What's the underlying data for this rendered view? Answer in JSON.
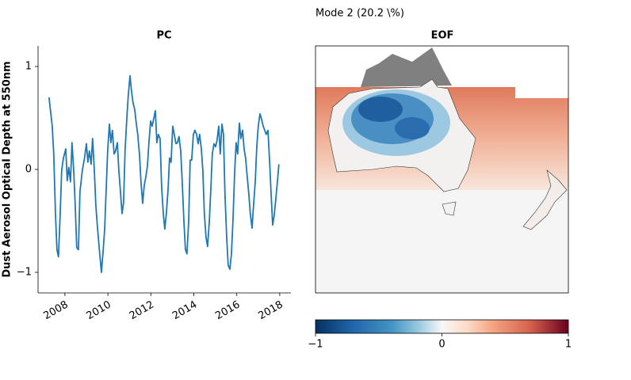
{
  "title": "Mode 2 (20.2 \\%)",
  "chart_data": [
    {
      "type": "line",
      "title": "PC",
      "y_label": "Dust Aerosol Optical Depth at 550nm",
      "x": [
        2007.26,
        2007.41,
        2007.48,
        2007.56,
        2007.63,
        2007.7,
        2007.78,
        2007.85,
        2007.93,
        2008.04,
        2008.11,
        2008.18,
        2008.26,
        2008.33,
        2008.41,
        2008.48,
        2008.55,
        2008.63,
        2008.7,
        2008.81,
        2008.92,
        2009.0,
        2009.07,
        2009.14,
        2009.22,
        2009.29,
        2009.37,
        2009.44,
        2009.51,
        2009.62,
        2009.7,
        2009.77,
        2009.85,
        2009.92,
        2009.99,
        2010.07,
        2010.14,
        2010.21,
        2010.29,
        2010.36,
        2010.44,
        2010.51,
        2010.58,
        2010.66,
        2010.73,
        2010.8,
        2010.88,
        2010.95,
        2011.03,
        2011.1,
        2011.17,
        2011.25,
        2011.32,
        2011.39,
        2011.47,
        2011.54,
        2011.62,
        2011.69,
        2011.76,
        2011.84,
        2011.91,
        2011.99,
        2012.06,
        2012.13,
        2012.21,
        2012.28,
        2012.35,
        2012.43,
        2012.5,
        2012.58,
        2012.65,
        2012.72,
        2012.8,
        2012.87,
        2012.94,
        2013.02,
        2013.09,
        2013.17,
        2013.24,
        2013.31,
        2013.39,
        2013.46,
        2013.54,
        2013.61,
        2013.68,
        2013.76,
        2013.83,
        2013.9,
        2013.98,
        2014.05,
        2014.13,
        2014.2,
        2014.27,
        2014.35,
        2014.42,
        2014.49,
        2014.57,
        2014.64,
        2014.72,
        2014.79,
        2014.86,
        2014.94,
        2015.01,
        2015.08,
        2015.16,
        2015.23,
        2015.31,
        2015.38,
        2015.45,
        2015.53,
        2015.6,
        2015.68,
        2015.75,
        2015.82,
        2015.9,
        2015.97,
        2016.04,
        2016.12,
        2016.19,
        2016.27,
        2016.34,
        2016.41,
        2016.49,
        2016.56,
        2016.63,
        2016.71,
        2016.78,
        2016.86,
        2016.93,
        2017.0,
        2017.08,
        2017.15,
        2017.23,
        2017.3,
        2017.37,
        2017.45,
        2017.52,
        2017.59,
        2017.67,
        2017.74,
        2017.82,
        2017.89,
        2017.96
      ],
      "series": [
        {
          "color": "#1f77b4",
          "values": [
            0.7,
            0.42,
            0.15,
            -0.43,
            -0.78,
            -0.85,
            -0.43,
            -0.01,
            0.11,
            0.2,
            -0.11,
            0.02,
            -0.12,
            0.26,
            -0.01,
            -0.35,
            -0.76,
            -0.78,
            -0.22,
            -0.01,
            0.12,
            0.25,
            0.07,
            0.18,
            0.05,
            0.3,
            -0.01,
            -0.35,
            -0.55,
            -0.82,
            -1.0,
            -0.82,
            -0.58,
            -0.2,
            0.18,
            0.44,
            0.26,
            0.38,
            0.15,
            0.18,
            0.26,
            -0.01,
            -0.2,
            -0.43,
            -0.32,
            0.18,
            0.49,
            0.72,
            0.91,
            0.76,
            0.65,
            0.58,
            0.45,
            0.34,
            0.15,
            -0.12,
            -0.33,
            -0.16,
            -0.08,
            0.03,
            0.26,
            0.47,
            0.42,
            0.49,
            0.57,
            0.26,
            0.34,
            0.3,
            -0.16,
            -0.43,
            -0.58,
            -0.43,
            -0.2,
            0.11,
            0.07,
            0.42,
            0.34,
            0.25,
            0.26,
            0.32,
            0.18,
            -0.12,
            -0.51,
            -0.78,
            -0.82,
            -0.51,
            0.09,
            0.09,
            0.34,
            0.38,
            0.34,
            0.25,
            0.34,
            0.2,
            -0.01,
            -0.43,
            -0.66,
            -0.75,
            -0.51,
            -0.2,
            0.15,
            0.25,
            0.22,
            0.28,
            0.42,
            0.15,
            0.44,
            0.34,
            -0.24,
            -0.66,
            -0.93,
            -0.97,
            -0.82,
            -0.51,
            -0.03,
            0.26,
            0.15,
            0.45,
            0.3,
            0.38,
            0.2,
            0.11,
            -0.08,
            -0.24,
            -0.43,
            -0.57,
            -0.35,
            -0.12,
            0.22,
            0.42,
            0.54,
            0.49,
            0.42,
            0.38,
            0.34,
            0.38,
            0.11,
            -0.2,
            -0.54,
            -0.45,
            -0.28,
            -0.12,
            0.05
          ]
        }
      ],
      "xlim": [
        2006.75,
        2018.52
      ],
      "xticks": [
        2008,
        2010,
        2012,
        2014,
        2016,
        2018
      ],
      "ylim": [
        -1.2,
        1.2
      ],
      "yticks": [
        {
          "value": -1,
          "label": "−1"
        },
        0,
        1
      ]
    },
    {
      "type": "map",
      "title": "EOF",
      "colorbar": {
        "lim": [
          -1,
          1
        ],
        "ticks": [
          {
            "value": -1,
            "label": "−1"
          },
          0,
          1
        ]
      }
    }
  ]
}
